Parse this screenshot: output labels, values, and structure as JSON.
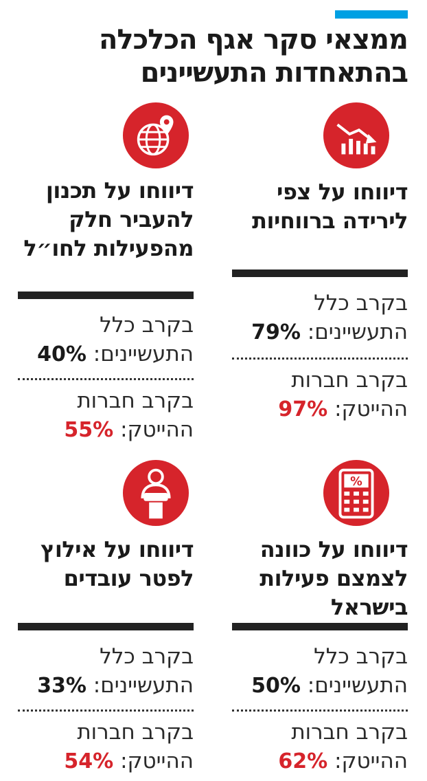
{
  "colors": {
    "accent": "#00a0e3",
    "highlight": "#d6242b",
    "icon_bg": "#d6242b"
  },
  "title": "ממצאי סקר אגף הכלכלה בהתאחדות התעשיינים",
  "cards": [
    {
      "icon": "declining-chart-icon",
      "heading": "דיווחו על צפי לירידה ברווחיות",
      "all_label": "בקרב כלל התעשיינים:",
      "all_value": "79%",
      "hitech_label": "בקרב חברות ההייטק:",
      "hitech_value": "97%"
    },
    {
      "icon": "globe-location-icon",
      "heading": "דיווחו על תכנון להעביר חלק מהפעילות לחו״ל",
      "all_label": "בקרב כלל התעשיינים:",
      "all_value": "40%",
      "hitech_label": "בקרב חברות ההייטק:",
      "hitech_value": "55%"
    },
    {
      "icon": "percent-calculator-icon",
      "heading": "דיווחו על כוונה לצמצם פעילות בישראל",
      "all_label": "בקרב כלל התעשיינים:",
      "all_value": "50%",
      "hitech_label": "בקרב חברות ההייטק:",
      "hitech_value": "62%"
    },
    {
      "icon": "worker-box-icon",
      "heading": "דיווחו על אילוץ לפטר עובדים",
      "all_label": "בקרב כלל התעשיינים:",
      "all_value": "33%",
      "hitech_label": "בקרב חברות ההייטק:",
      "hitech_value": "54%"
    }
  ]
}
